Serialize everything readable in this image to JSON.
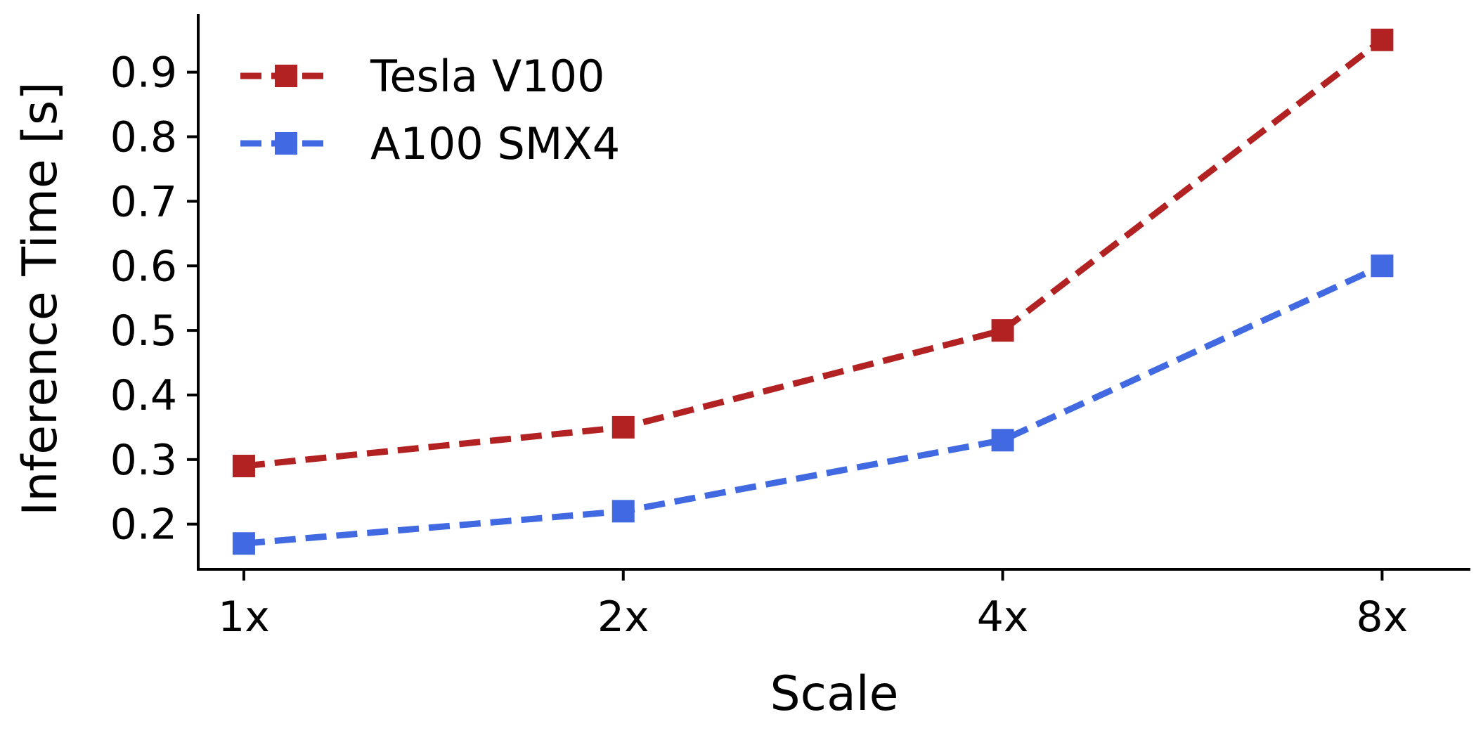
{
  "chart_data": {
    "type": "line",
    "title": "",
    "xlabel": "Scale",
    "ylabel": "Inference Time [s]",
    "x_scale": "log2",
    "x": [
      1,
      2,
      4,
      8
    ],
    "x_tick_labels": [
      "1x",
      "2x",
      "4x",
      "8x"
    ],
    "xlim": [
      0.92,
      9.4
    ],
    "ylim": [
      0.13,
      0.99
    ],
    "y_ticks": [
      0.2,
      0.3,
      0.4,
      0.5,
      0.6,
      0.7,
      0.8,
      0.9
    ],
    "y_tick_labels": [
      "0.2",
      "0.3",
      "0.4",
      "0.5",
      "0.6",
      "0.7",
      "0.8",
      "0.9"
    ],
    "grid": false,
    "legend_position": "top-left",
    "series": [
      {
        "name": "Tesla V100",
        "values": [
          0.29,
          0.35,
          0.5,
          0.95
        ],
        "color": "#b22222",
        "line_style": "dashed",
        "marker": "square"
      },
      {
        "name": "A100 SMX4",
        "values": [
          0.17,
          0.22,
          0.33,
          0.6
        ],
        "color": "#4169e1",
        "line_style": "dashed",
        "marker": "square"
      }
    ]
  }
}
